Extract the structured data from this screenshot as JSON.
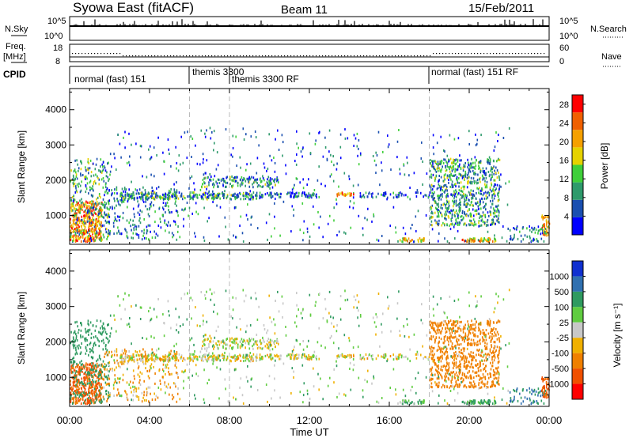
{
  "header": {
    "title": "Syowa East (fitACF)",
    "beam": "Beam 11",
    "date": "15/Feb/2011"
  },
  "top_panels": {
    "nsky_label": "N.Sky",
    "nsky_ticks": [
      "10^5",
      "10^0"
    ],
    "nsearch_label": "N.Search",
    "nsearch_ticks": [
      "10^5",
      "10^0"
    ],
    "freq_label_1": "Freq.",
    "freq_label_2": "[MHz]",
    "freq_ticks": [
      "18",
      "8"
    ],
    "nave_label": "Nave",
    "nave_ticks": [
      "60",
      "0"
    ],
    "cpid_label": "CPID"
  },
  "cpid_segments": [
    {
      "label": "normal (fast) 151",
      "start_hour": 0
    },
    {
      "label": "themis 3300",
      "start_hour": 6
    },
    {
      "label": "themis 3300 RF",
      "start_hour": 8
    },
    {
      "label": "normal (fast) 151 RF",
      "start_hour": 18
    }
  ],
  "x_axis": {
    "label": "Time UT",
    "ticks": [
      "00:00",
      "04:00",
      "08:00",
      "12:00",
      "16:00",
      "20:00",
      "00:00"
    ],
    "range_hours": [
      0,
      24
    ]
  },
  "y_axis": {
    "label": "Slant Range [km]",
    "ticks": [
      "1000",
      "2000",
      "3000",
      "4000"
    ],
    "range_km": [
      180,
      4600
    ]
  },
  "power_colorbar": {
    "label": "Power [dB]",
    "ticks": [
      "28",
      "24",
      "20",
      "16",
      "12",
      "8",
      "4"
    ],
    "range": [
      0,
      30
    ],
    "colors": [
      "#0000ff",
      "#1a4fb0",
      "#2e9a6b",
      "#3fcf3a",
      "#e6d200",
      "#f5a000",
      "#f06000",
      "#ff0000"
    ]
  },
  "velocity_colorbar": {
    "label": "Velocity [m s⁻¹]",
    "ticks": [
      "1000",
      "500",
      "100",
      "25",
      "-25",
      "-100",
      "-500",
      "-1000"
    ],
    "colors": [
      "#1030d0",
      "#3070b0",
      "#2f9a60",
      "#60cc40",
      "#c8c8c8",
      "#f0b000",
      "#f08000",
      "#f05000",
      "#ff0000"
    ]
  },
  "chart_data": {
    "type": "heatmap",
    "title": "Syowa East (fitACF)",
    "xlabel": "Time UT",
    "ylabel": "Slant Range [km]",
    "xlim_hours": [
      0,
      24
    ],
    "ylim_km": [
      180,
      4600
    ],
    "scatter_regions": [
      {
        "t": [
          0.0,
          1.6
        ],
        "r": [
          250,
          1400
        ],
        "power": 22,
        "velocity": -600,
        "density": 0.6
      },
      {
        "t": [
          0.0,
          2.0
        ],
        "r": [
          250,
          2600
        ],
        "power": 10,
        "velocity": 300,
        "density": 0.18
      },
      {
        "t": [
          1.6,
          5.5
        ],
        "r": [
          300,
          1800
        ],
        "power": 8,
        "velocity": -100,
        "density": 0.12
      },
      {
        "t": [
          2.5,
          9.5
        ],
        "r": [
          1450,
          1650
        ],
        "power": 10,
        "velocity": -20,
        "density": 0.55
      },
      {
        "t": [
          6.5,
          10.5
        ],
        "r": [
          1800,
          2100
        ],
        "power": 9,
        "velocity": 0,
        "density": 0.35
      },
      {
        "t": [
          9.5,
          12.5
        ],
        "r": [
          1500,
          1650
        ],
        "power": 6,
        "velocity": -15,
        "density": 0.5
      },
      {
        "t": [
          13.3,
          14.2
        ],
        "r": [
          1550,
          1650
        ],
        "power": 20,
        "velocity": -20,
        "density": 0.6
      },
      {
        "t": [
          14.5,
          18.0
        ],
        "r": [
          1500,
          1650
        ],
        "power": 6,
        "velocity": -20,
        "density": 0.3
      },
      {
        "t": [
          16.5,
          17.8
        ],
        "r": [
          250,
          350
        ],
        "power": 18,
        "velocity": 80,
        "density": 0.8
      },
      {
        "t": [
          18.0,
          21.5
        ],
        "r": [
          700,
          2600
        ],
        "power": 10,
        "velocity": -200,
        "density": 0.35
      },
      {
        "t": [
          19.5,
          21.3
        ],
        "r": [
          250,
          350
        ],
        "power": 20,
        "velocity": 150,
        "density": 0.8
      },
      {
        "t": [
          22.0,
          23.8
        ],
        "r": [
          250,
          700
        ],
        "power": 8,
        "velocity": 500,
        "density": 0.2
      },
      {
        "t": [
          23.6,
          24.0
        ],
        "r": [
          400,
          1000
        ],
        "power": 20,
        "velocity": -600,
        "density": 0.5
      },
      {
        "t": [
          2.0,
          22.0
        ],
        "r": [
          250,
          3500
        ],
        "power": 6,
        "velocity": 50,
        "density": 0.025
      }
    ]
  }
}
